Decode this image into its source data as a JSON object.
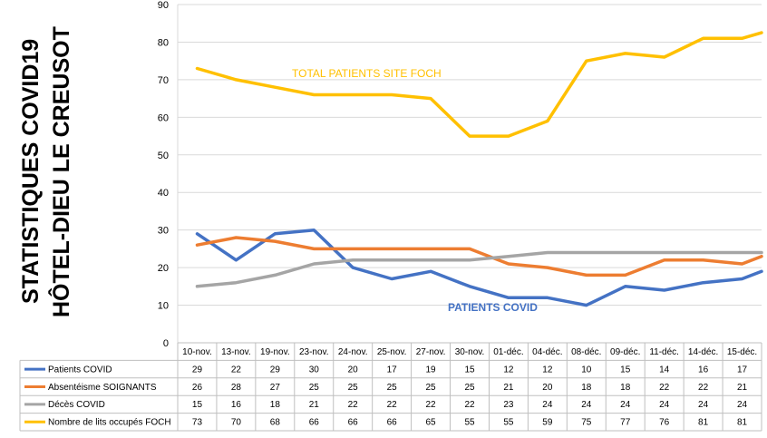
{
  "side_title": {
    "line1": "STATISTIQUES COVID19",
    "line2": "HÔTEL-DIEU LE CREUSOT"
  },
  "chart_data": {
    "type": "line",
    "categories": [
      "10-nov.",
      "13-nov.",
      "19-nov.",
      "23-nov.",
      "24-nov.",
      "25-nov.",
      "27-nov.",
      "30-nov.",
      "01-déc.",
      "04-déc.",
      "08-déc.",
      "09-déc.",
      "11-déc.",
      "14-déc.",
      "15-déc."
    ],
    "ylim": [
      0,
      90
    ],
    "yticks": [
      0,
      10,
      20,
      30,
      40,
      50,
      60,
      70,
      80,
      90
    ],
    "grid": true,
    "series": [
      {
        "name": "Patients COVID",
        "color": "#4472C4",
        "values": [
          29,
          22,
          29,
          30,
          20,
          17,
          19,
          15,
          12,
          12,
          10,
          15,
          14,
          16,
          17
        ],
        "last_visible": 19
      },
      {
        "name": "Absentéisme SOIGNANTS",
        "color": "#ED7D31",
        "values": [
          26,
          28,
          27,
          25,
          25,
          25,
          25,
          25,
          21,
          20,
          18,
          18,
          22,
          22,
          21
        ],
        "last_visible": 23
      },
      {
        "name": "Décès COVID",
        "color": "#A5A5A5",
        "values": [
          15,
          16,
          18,
          21,
          22,
          22,
          22,
          22,
          23,
          24,
          24,
          24,
          24,
          24,
          24
        ],
        "last_visible": 24
      },
      {
        "name": "Nombre de lits occupés FOCH",
        "color": "#FFC000",
        "values": [
          73,
          70,
          68,
          66,
          66,
          66,
          65,
          55,
          55,
          59,
          75,
          77,
          76,
          81,
          81
        ],
        "last_visible": 82.5
      }
    ],
    "annotations": [
      {
        "text": "TOTAL PATIENTS SITE FOCH",
        "color": "#FFC000"
      },
      {
        "text": "PATIENTS COVID",
        "color": "#4472C4"
      }
    ]
  }
}
